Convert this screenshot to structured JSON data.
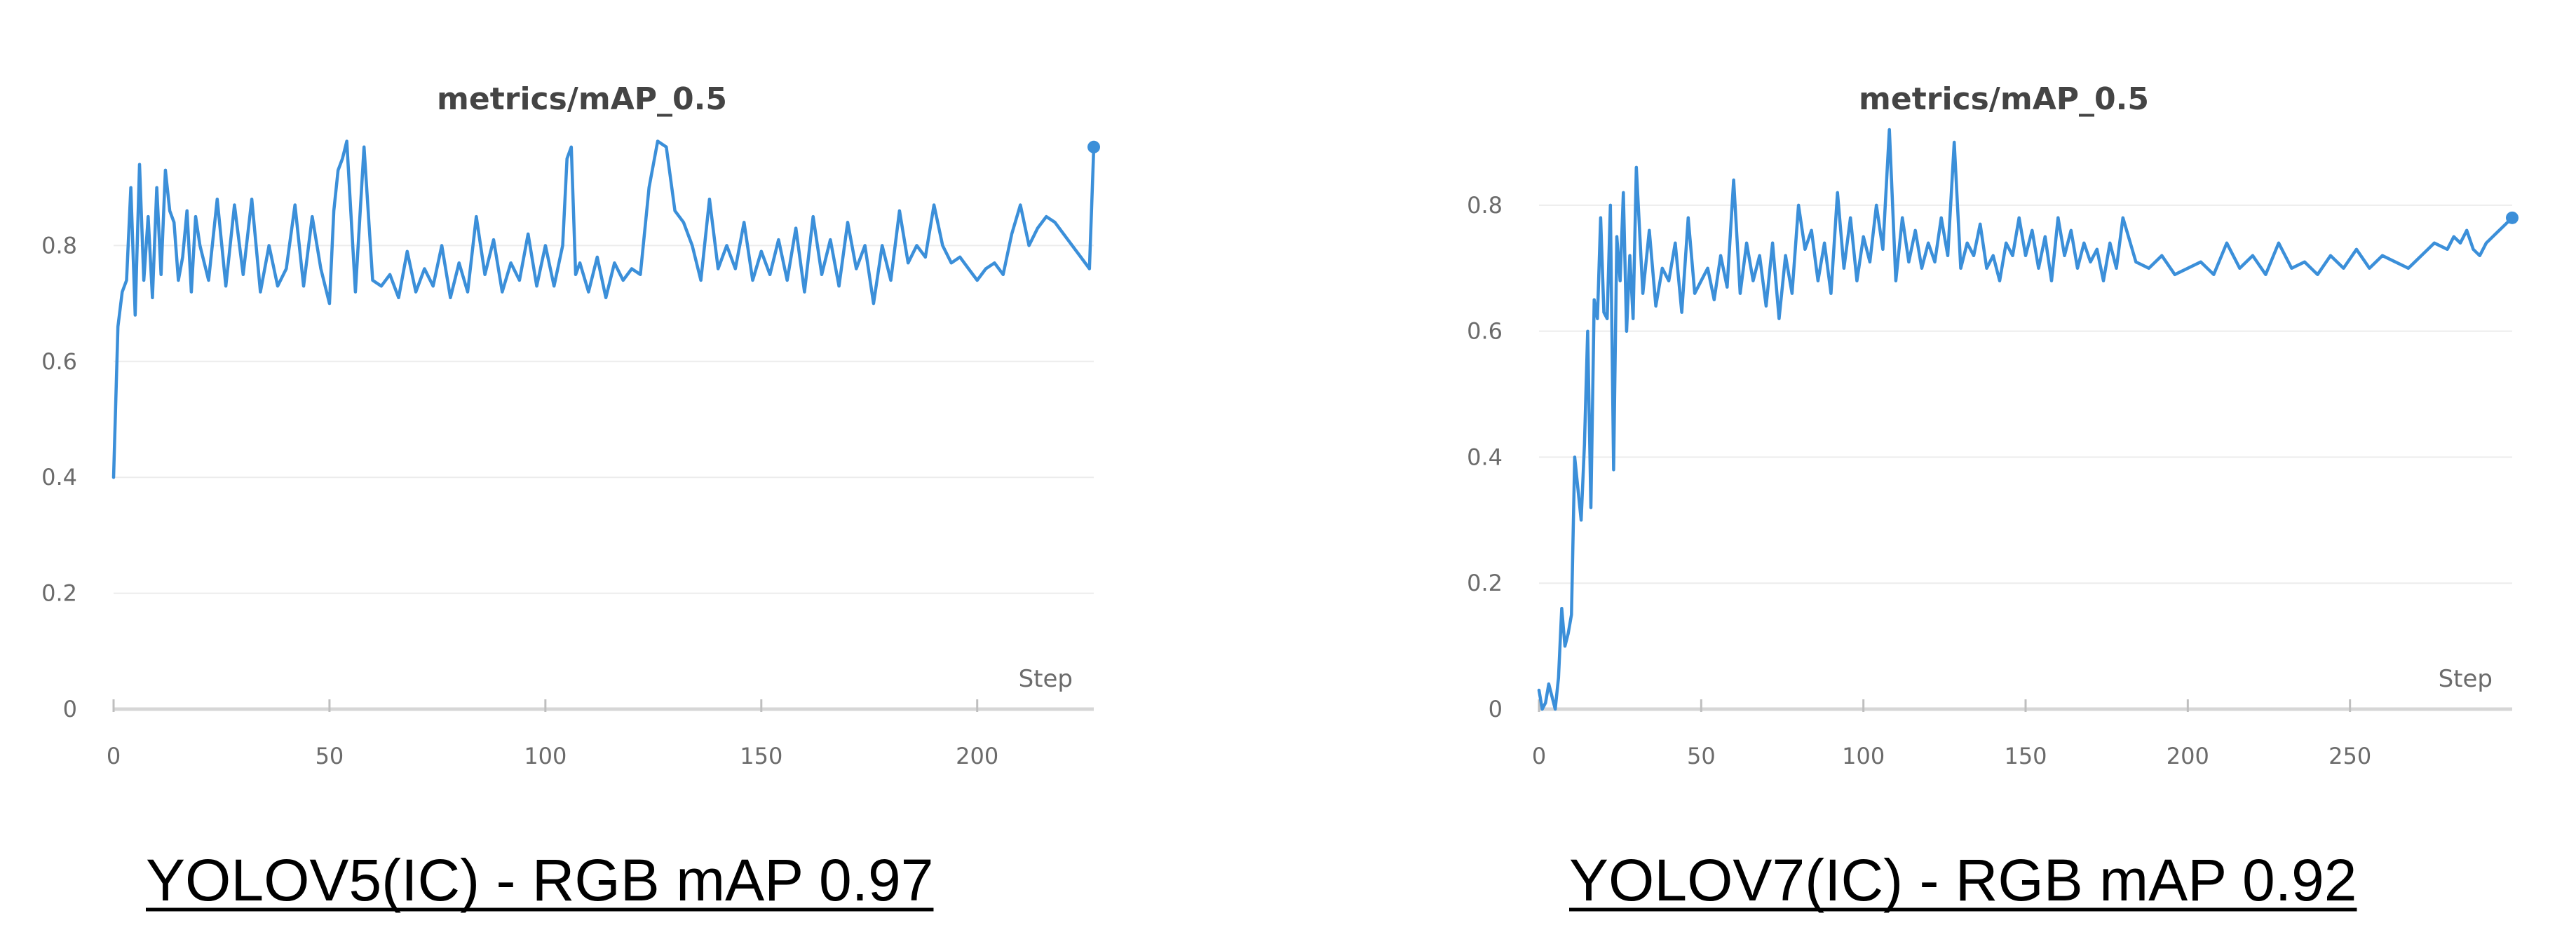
{
  "series_color": "#3b8fd9",
  "chart_data": [
    {
      "type": "line",
      "title": "metrics/mAP_0.5",
      "xlabel": "Step",
      "ylabel": "",
      "xlim": [
        0,
        227
      ],
      "ylim": [
        0,
        1.0
      ],
      "x_ticks": [
        "0",
        "50",
        "100",
        "150",
        "200"
      ],
      "y_ticks": [
        "0",
        "0.2",
        "0.4",
        "0.6",
        "0.8"
      ],
      "grid": true,
      "end_marker": true,
      "caption": "YOLOV5(IC) - RGB mAP 0.97",
      "series": [
        {
          "x": [
            0,
            1,
            2,
            3,
            4,
            5,
            6,
            7,
            8,
            9,
            10,
            11,
            12,
            13,
            14,
            15,
            16,
            17,
            18,
            19,
            20,
            22,
            24,
            26,
            28,
            30,
            32,
            34,
            36,
            38,
            40,
            42,
            44,
            46,
            48,
            50,
            51,
            52,
            53,
            54,
            56,
            58,
            60,
            62,
            64,
            66,
            68,
            70,
            72,
            74,
            76,
            78,
            80,
            82,
            84,
            86,
            88,
            90,
            92,
            94,
            96,
            98,
            100,
            102,
            104,
            105,
            106,
            107,
            108,
            110,
            112,
            114,
            116,
            118,
            120,
            122,
            124,
            126,
            128,
            130,
            132,
            134,
            136,
            138,
            140,
            142,
            144,
            146,
            148,
            150,
            152,
            154,
            156,
            158,
            160,
            162,
            164,
            166,
            168,
            170,
            172,
            174,
            176,
            178,
            180,
            182,
            184,
            186,
            188,
            190,
            192,
            194,
            196,
            198,
            200,
            202,
            204,
            206,
            208,
            210,
            212,
            214,
            216,
            218,
            220,
            222,
            224,
            226,
            227
          ],
          "y": [
            0.4,
            0.66,
            0.72,
            0.74,
            0.9,
            0.68,
            0.94,
            0.74,
            0.85,
            0.71,
            0.9,
            0.75,
            0.93,
            0.86,
            0.84,
            0.74,
            0.78,
            0.86,
            0.72,
            0.85,
            0.8,
            0.74,
            0.88,
            0.73,
            0.87,
            0.75,
            0.88,
            0.72,
            0.8,
            0.73,
            0.76,
            0.87,
            0.73,
            0.85,
            0.76,
            0.7,
            0.86,
            0.93,
            0.95,
            0.98,
            0.72,
            0.97,
            0.74,
            0.73,
            0.75,
            0.71,
            0.79,
            0.72,
            0.76,
            0.73,
            0.8,
            0.71,
            0.77,
            0.72,
            0.85,
            0.75,
            0.81,
            0.72,
            0.77,
            0.74,
            0.82,
            0.73,
            0.8,
            0.73,
            0.8,
            0.95,
            0.97,
            0.75,
            0.77,
            0.72,
            0.78,
            0.71,
            0.77,
            0.74,
            0.76,
            0.75,
            0.9,
            0.98,
            0.97,
            0.86,
            0.84,
            0.8,
            0.74,
            0.88,
            0.76,
            0.8,
            0.76,
            0.84,
            0.74,
            0.79,
            0.75,
            0.81,
            0.74,
            0.83,
            0.72,
            0.85,
            0.75,
            0.81,
            0.73,
            0.84,
            0.76,
            0.8,
            0.7,
            0.8,
            0.74,
            0.86,
            0.77,
            0.8,
            0.78,
            0.87,
            0.8,
            0.77,
            0.78,
            0.76,
            0.74,
            0.76,
            0.77,
            0.75,
            0.82,
            0.87,
            0.8,
            0.83,
            0.85,
            0.84,
            0.82,
            0.8,
            0.78,
            0.76,
            0.97
          ]
        }
      ]
    },
    {
      "type": "line",
      "title": "metrics/mAP_0.5",
      "xlabel": "Step",
      "ylabel": "",
      "xlim": [
        0,
        300
      ],
      "ylim": [
        0,
        0.92
      ],
      "x_ticks": [
        "0",
        "50",
        "100",
        "150",
        "200",
        "250"
      ],
      "y_ticks": [
        "0",
        "0.2",
        "0.4",
        "0.6",
        "0.8"
      ],
      "grid": true,
      "end_marker": true,
      "caption": "YOLOV7(IC) - RGB mAP 0.92",
      "series": [
        {
          "x": [
            0,
            1,
            2,
            3,
            4,
            5,
            6,
            7,
            8,
            9,
            10,
            11,
            12,
            13,
            14,
            15,
            16,
            17,
            18,
            19,
            20,
            21,
            22,
            23,
            24,
            25,
            26,
            27,
            28,
            29,
            30,
            32,
            34,
            36,
            38,
            40,
            42,
            44,
            46,
            48,
            50,
            52,
            54,
            56,
            58,
            60,
            62,
            64,
            66,
            68,
            70,
            72,
            74,
            76,
            78,
            80,
            82,
            84,
            86,
            88,
            90,
            92,
            94,
            96,
            98,
            100,
            102,
            104,
            106,
            108,
            110,
            112,
            114,
            116,
            118,
            120,
            122,
            124,
            126,
            128,
            130,
            132,
            134,
            136,
            138,
            140,
            142,
            144,
            146,
            148,
            150,
            152,
            154,
            156,
            158,
            160,
            162,
            164,
            166,
            168,
            170,
            172,
            174,
            176,
            178,
            180,
            184,
            188,
            192,
            196,
            200,
            204,
            208,
            212,
            216,
            220,
            224,
            228,
            232,
            236,
            240,
            244,
            248,
            252,
            256,
            260,
            264,
            268,
            272,
            276,
            280,
            282,
            284,
            286,
            288,
            290,
            292,
            294,
            296,
            298,
            300
          ],
          "y": [
            0.03,
            0.0,
            0.01,
            0.04,
            0.02,
            0.0,
            0.05,
            0.16,
            0.1,
            0.12,
            0.15,
            0.4,
            0.35,
            0.3,
            0.42,
            0.6,
            0.32,
            0.65,
            0.62,
            0.78,
            0.63,
            0.62,
            0.8,
            0.38,
            0.75,
            0.68,
            0.82,
            0.6,
            0.72,
            0.62,
            0.86,
            0.66,
            0.76,
            0.64,
            0.7,
            0.68,
            0.74,
            0.63,
            0.78,
            0.66,
            0.68,
            0.7,
            0.65,
            0.72,
            0.67,
            0.84,
            0.66,
            0.74,
            0.68,
            0.72,
            0.64,
            0.74,
            0.62,
            0.72,
            0.66,
            0.8,
            0.73,
            0.76,
            0.68,
            0.74,
            0.66,
            0.82,
            0.7,
            0.78,
            0.68,
            0.75,
            0.71,
            0.8,
            0.73,
            0.92,
            0.68,
            0.78,
            0.71,
            0.76,
            0.7,
            0.74,
            0.71,
            0.78,
            0.72,
            0.9,
            0.7,
            0.74,
            0.72,
            0.77,
            0.7,
            0.72,
            0.68,
            0.74,
            0.72,
            0.78,
            0.72,
            0.76,
            0.7,
            0.75,
            0.68,
            0.78,
            0.72,
            0.76,
            0.7,
            0.74,
            0.71,
            0.73,
            0.68,
            0.74,
            0.7,
            0.78,
            0.71,
            0.7,
            0.72,
            0.69,
            0.7,
            0.71,
            0.69,
            0.74,
            0.7,
            0.72,
            0.69,
            0.74,
            0.7,
            0.71,
            0.69,
            0.72,
            0.7,
            0.73,
            0.7,
            0.72,
            0.71,
            0.7,
            0.72,
            0.74,
            0.73,
            0.75,
            0.74,
            0.76,
            0.73,
            0.72,
            0.74,
            0.75,
            0.76,
            0.77,
            0.78
          ]
        }
      ]
    }
  ]
}
